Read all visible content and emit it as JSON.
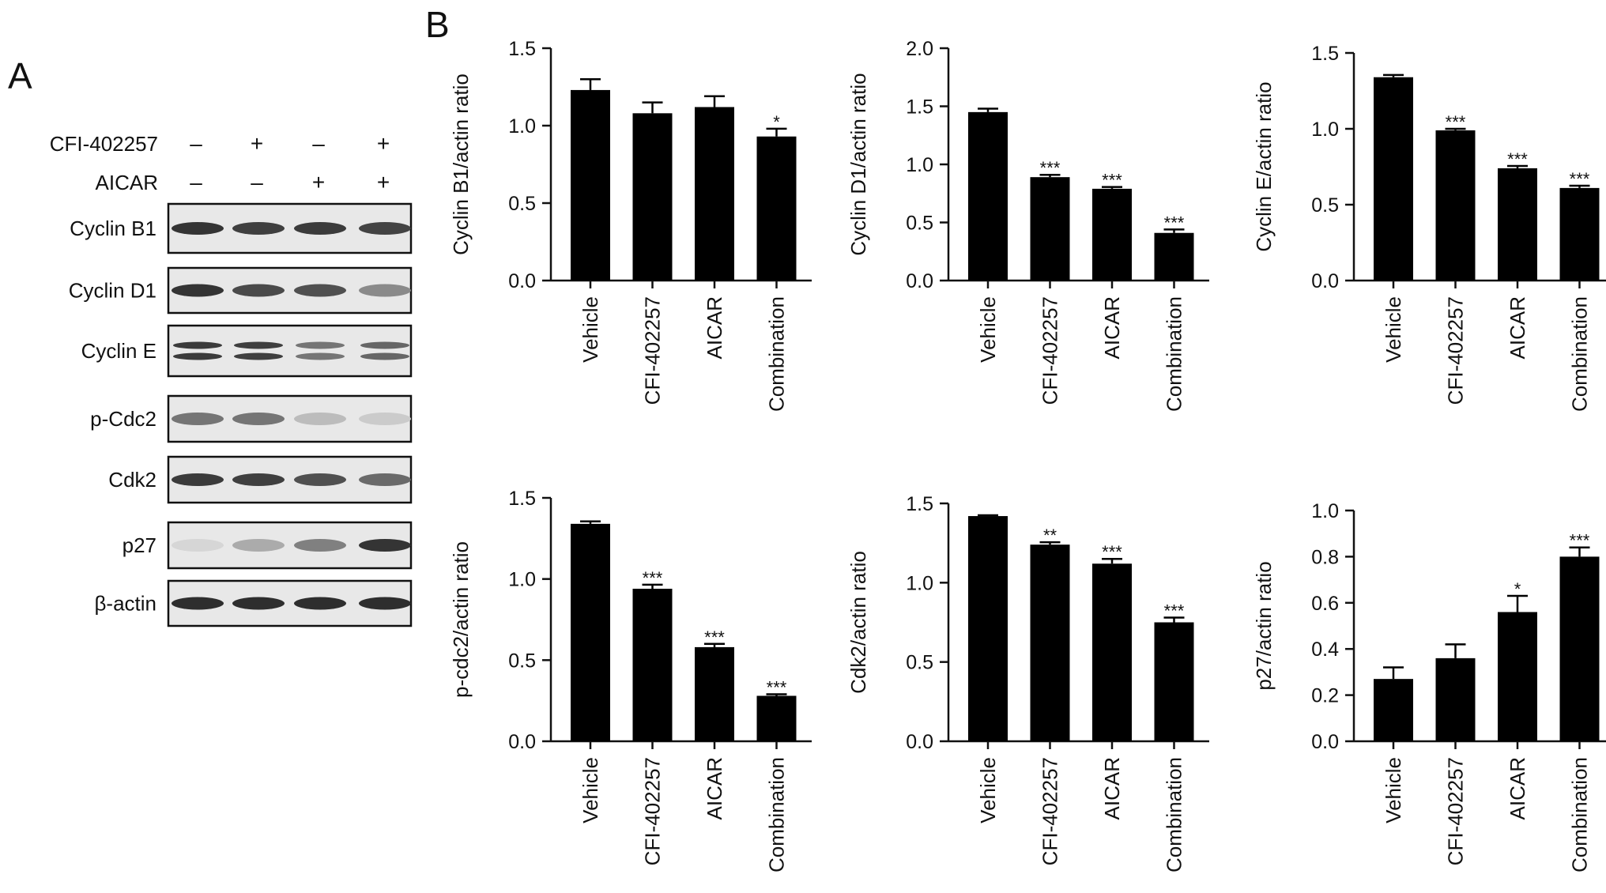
{
  "panel_labels": {
    "a": "A",
    "b": "B"
  },
  "western_blot": {
    "treatments": [
      {
        "name": "CFI-402257",
        "signs": [
          "–",
          "+",
          "–",
          "+"
        ]
      },
      {
        "name": "AICAR",
        "signs": [
          "–",
          "–",
          "+",
          "+"
        ]
      }
    ],
    "bands": [
      {
        "label": "Cyclin B1",
        "intensity": [
          0.85,
          0.8,
          0.82,
          0.78
        ],
        "doublet": false
      },
      {
        "label": "Cyclin D1",
        "intensity": [
          0.85,
          0.75,
          0.72,
          0.45
        ],
        "doublet": false
      },
      {
        "label": "Cyclin E",
        "intensity": [
          0.82,
          0.8,
          0.55,
          0.62
        ],
        "doublet": true
      },
      {
        "label": "p-Cdc2",
        "intensity": [
          0.55,
          0.55,
          0.22,
          0.15
        ],
        "doublet": false
      },
      {
        "label": "Cdk2",
        "intensity": [
          0.82,
          0.8,
          0.72,
          0.6
        ],
        "doublet": false
      },
      {
        "label": "p27",
        "intensity": [
          0.1,
          0.3,
          0.5,
          0.85
        ],
        "doublet": false
      },
      {
        "label": "β-actin",
        "intensity": [
          0.88,
          0.88,
          0.88,
          0.88
        ],
        "doublet": false
      }
    ]
  },
  "chart_data": [
    {
      "type": "bar",
      "categories": [
        "Vehicle",
        "CFI-402257",
        "AICAR",
        "Combination"
      ],
      "values": [
        1.23,
        1.08,
        1.12,
        0.93
      ],
      "errors": [
        0.07,
        0.07,
        0.07,
        0.05
      ],
      "significance": [
        "",
        "",
        "",
        "*"
      ],
      "ylabel": "Cyclin B1/actin ratio",
      "ylim": [
        0,
        1.5
      ],
      "yticks": [
        "0.0",
        "0.5",
        "1.0",
        "1.5"
      ]
    },
    {
      "type": "bar",
      "categories": [
        "Vehicle",
        "CFI-402257",
        "AICAR",
        "Combination"
      ],
      "values": [
        1.45,
        0.89,
        0.79,
        0.41
      ],
      "errors": [
        0.03,
        0.02,
        0.015,
        0.03
      ],
      "significance": [
        "",
        "***",
        "***",
        "***"
      ],
      "ylabel": "Cyclin D1/actin ratio",
      "ylim": [
        0,
        2.0
      ],
      "yticks": [
        "0.0",
        "0.5",
        "1.0",
        "1.5",
        "2.0"
      ]
    },
    {
      "type": "bar",
      "categories": [
        "Vehicle",
        "CFI-402257",
        "AICAR",
        "Combination"
      ],
      "values": [
        1.34,
        0.99,
        0.74,
        0.61
      ],
      "errors": [
        0.015,
        0.01,
        0.015,
        0.015
      ],
      "significance": [
        "",
        "***",
        "***",
        "***"
      ],
      "ylabel": "Cyclin E/actin ratio",
      "ylim": [
        0,
        1.5
      ],
      "yticks": [
        "0.0",
        "0.5",
        "1.0",
        "1.5"
      ]
    },
    {
      "type": "bar",
      "categories": [
        "Vehicle",
        "CFI-402257",
        "AICAR",
        "Combination"
      ],
      "values": [
        1.34,
        0.94,
        0.58,
        0.28
      ],
      "errors": [
        0.015,
        0.025,
        0.02,
        0.01
      ],
      "significance": [
        "",
        "***",
        "***",
        "***"
      ],
      "ylabel": "p-cdc2/actin ratio",
      "ylim": [
        0,
        1.5
      ],
      "yticks": [
        "0.0",
        "0.5",
        "1.0",
        "1.5"
      ]
    },
    {
      "type": "bar",
      "categories": [
        "Vehicle",
        "CFI-402257",
        "AICAR",
        "Combination"
      ],
      "values": [
        1.42,
        1.24,
        1.12,
        0.75
      ],
      "errors": [
        0.005,
        0.015,
        0.03,
        0.03
      ],
      "significance": [
        "",
        "**",
        "***",
        "***"
      ],
      "ylabel": "Cdk2/actin ratio",
      "ylim": [
        0,
        1.5
      ],
      "yticks": [
        "0.0",
        "0.5",
        "1.0",
        "1.5"
      ]
    },
    {
      "type": "bar",
      "categories": [
        "Vehicle",
        "CFI-402257",
        "AICAR",
        "Combination"
      ],
      "values": [
        0.27,
        0.36,
        0.56,
        0.8
      ],
      "errors": [
        0.05,
        0.06,
        0.07,
        0.04
      ],
      "significance": [
        "",
        "",
        "*",
        "***"
      ],
      "ylabel": "p27/actin ratio",
      "ylim": [
        0,
        1.0
      ],
      "yticks": [
        "0.0",
        "0.2",
        "0.4",
        "0.6",
        "0.8",
        "1.0"
      ]
    }
  ]
}
